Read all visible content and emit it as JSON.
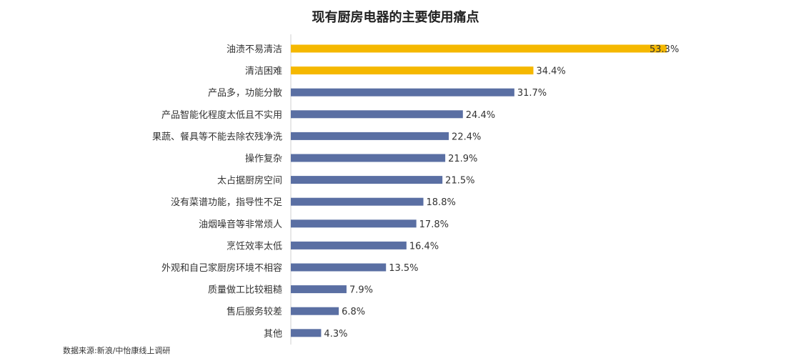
{
  "chart_data": {
    "type": "bar",
    "orientation": "horizontal",
    "title": "现有厨房电器的主要使用痛点",
    "categories": [
      "油渍不易清洁",
      "清洁困难",
      "产品多，功能分散",
      "产品智能化程度太低且不实用",
      "果蔬、餐具等不能去除农残净洗",
      "操作复杂",
      "太占据厨房空间",
      "没有菜谱功能，指导性不足",
      "油烟噪音等非常烦人",
      "烹饪效率太低",
      "外观和自己家厨房环境不相容",
      "质量做工比较粗糙",
      "售后服务较差",
      "其他"
    ],
    "values": [
      53.3,
      34.4,
      31.7,
      24.4,
      22.4,
      21.9,
      21.5,
      18.8,
      17.8,
      16.4,
      13.5,
      7.9,
      6.8,
      4.3
    ],
    "value_labels": [
      "53.3%",
      "34.4%",
      "31.7%",
      "24.4%",
      "22.4%",
      "21.9%",
      "21.5%",
      "18.8%",
      "17.8%",
      "16.4%",
      "13.5%",
      "7.9%",
      "6.8%",
      "4.3%"
    ],
    "highlight_count": 2,
    "xlim": [
      0,
      53.3
    ],
    "grid": false,
    "legend": "none"
  },
  "colors": {
    "highlight": "#f5b800",
    "bar": "#5a6fa3",
    "axis": "#d0d0d0"
  },
  "footer": {
    "source": "数据来源:新浪/中怡康线上调研"
  }
}
